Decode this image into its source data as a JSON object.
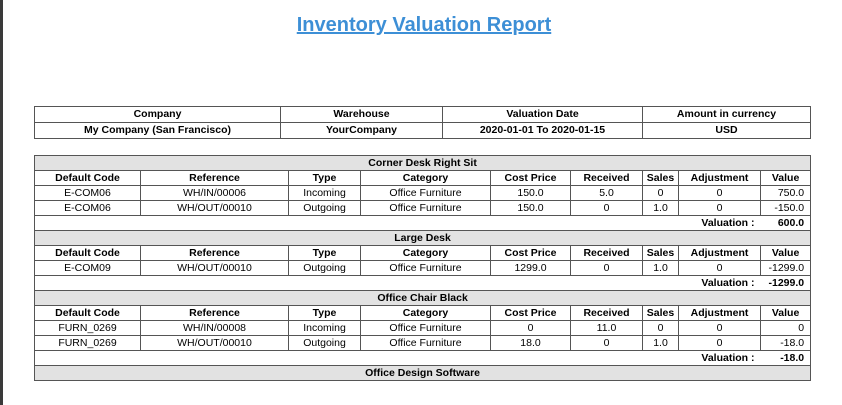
{
  "report": {
    "title": "Inventory Valuation Report"
  },
  "header": {
    "columns": [
      "Company",
      "Warehouse",
      "Valuation Date",
      "Amount in currency"
    ],
    "values": [
      "My Company (San Francisco)",
      "YourCompany",
      "2020-01-01 To 2020-01-15",
      "USD"
    ]
  },
  "valuation_label": "Valuation :",
  "products": [
    {
      "name": "Corner Desk Right Sit",
      "columns": [
        "Default Code",
        "Reference",
        "Type",
        "Category",
        "Cost Price",
        "Received",
        "Sales",
        "Adjustment",
        "Value"
      ],
      "rows": [
        [
          "E-COM06",
          "WH/IN/00006",
          "Incoming",
          "Office Furniture",
          "150.0",
          "5.0",
          "0",
          "0",
          "750.0"
        ],
        [
          "E-COM06",
          "WH/OUT/00010",
          "Outgoing",
          "Office Furniture",
          "150.0",
          "0",
          "1.0",
          "0",
          "-150.0"
        ]
      ],
      "valuation": "600.0"
    },
    {
      "name": "Large Desk",
      "columns": [
        "Default Code",
        "Reference",
        "Type",
        "Category",
        "Cost Price",
        "Received",
        "Sales",
        "Adjustment",
        "Value"
      ],
      "rows": [
        [
          "E-COM09",
          "WH/OUT/00010",
          "Outgoing",
          "Office Furniture",
          "1299.0",
          "0",
          "1.0",
          "0",
          "-1299.0"
        ]
      ],
      "valuation": "-1299.0"
    },
    {
      "name": "Office Chair Black",
      "columns": [
        "Default Code",
        "Reference",
        "Type",
        "Category",
        "Cost Price",
        "Received",
        "Sales",
        "Adjustment",
        "Value"
      ],
      "rows": [
        [
          "FURN_0269",
          "WH/IN/00008",
          "Incoming",
          "Office Furniture",
          "0",
          "11.0",
          "0",
          "0",
          "0"
        ],
        [
          "FURN_0269",
          "WH/OUT/00010",
          "Outgoing",
          "Office Furniture",
          "18.0",
          "0",
          "1.0",
          "0",
          "-18.0"
        ]
      ],
      "valuation": "-18.0"
    },
    {
      "name": "Office Design Software",
      "columns": [],
      "rows": [],
      "valuation": null
    }
  ]
}
